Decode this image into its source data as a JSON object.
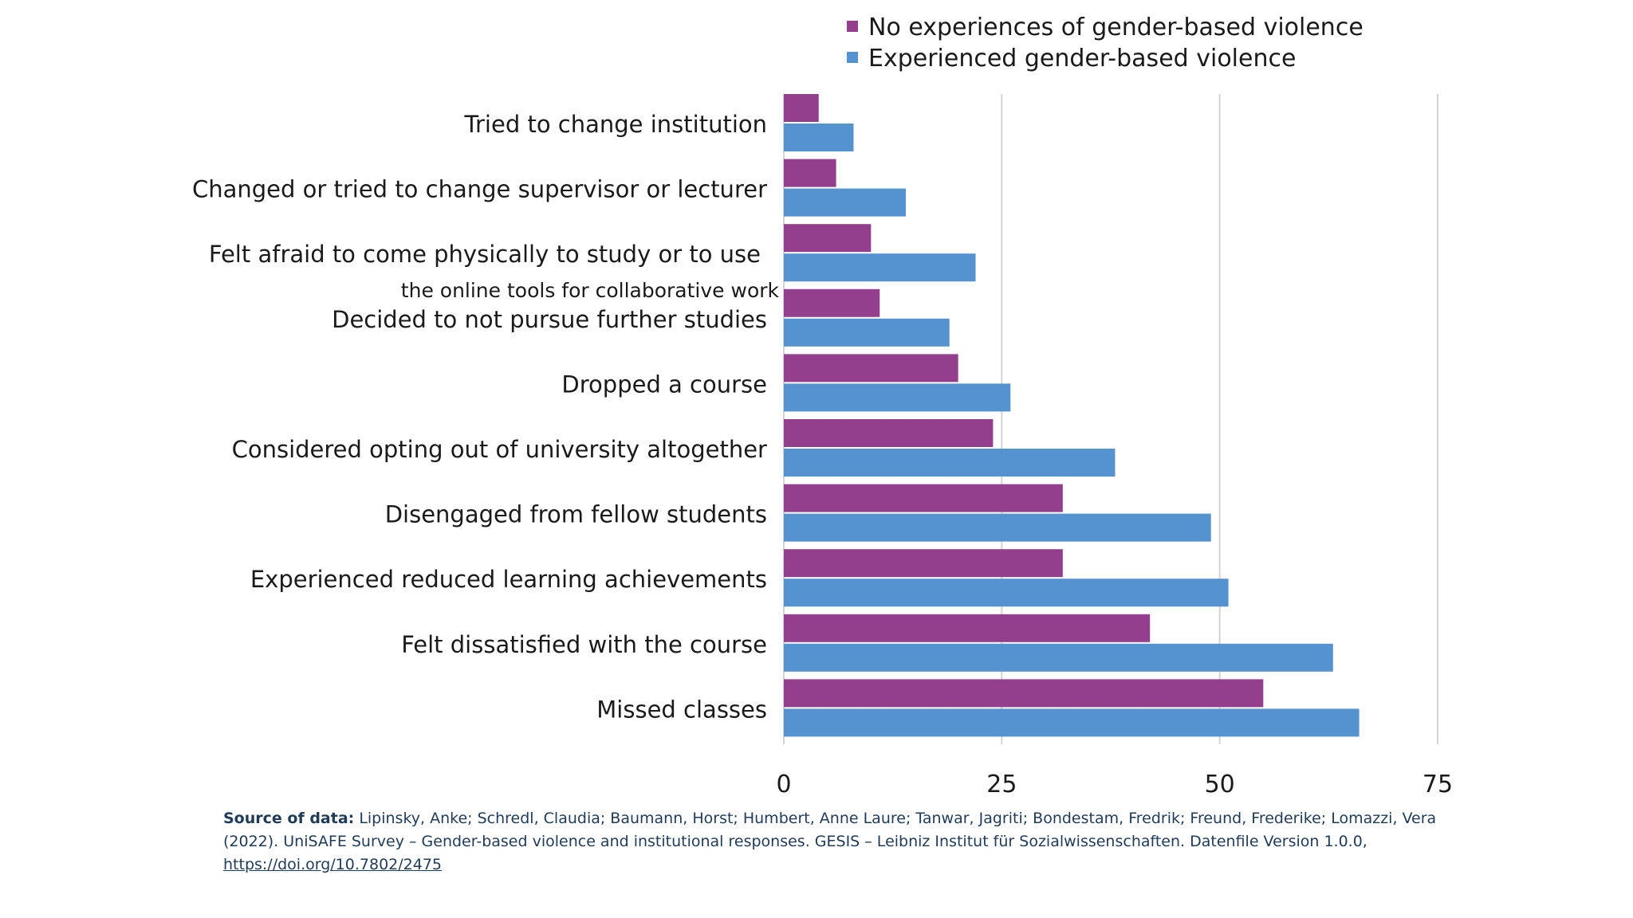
{
  "chart_data": {
    "type": "bar",
    "orientation": "horizontal",
    "categories": [
      "Tried to change institution",
      "Changed or tried to change supervisor or lecturer",
      "Felt afraid to come physically to study or to use the online tools for collaborative work",
      "Decided to not pursue further studies",
      "Dropped a course",
      "Considered opting out of university altogether",
      "Disengaged from fellow students",
      "Experienced reduced learning achievements",
      "Felt dissatisfied with the course",
      "Missed classes"
    ],
    "category_lines": [
      [
        "Tried to change institution"
      ],
      [
        "Changed or tried to change supervisor or lecturer"
      ],
      [
        "Felt afraid to come physically to study or to use",
        "the online tools for collaborative work"
      ],
      [
        "Decided to not pursue further studies"
      ],
      [
        "Dropped a course"
      ],
      [
        "Considered opting out of university altogether"
      ],
      [
        "Disengaged from fellow students"
      ],
      [
        "Experienced reduced learning achievements"
      ],
      [
        "Felt dissatisfied with the course"
      ],
      [
        "Missed classes"
      ]
    ],
    "series": [
      {
        "name": "No experiences of gender-based violence",
        "color": "#943f8e",
        "values": [
          4,
          6,
          10,
          11,
          20,
          24,
          32,
          32,
          42,
          55
        ]
      },
      {
        "name": "Experienced gender-based violence",
        "color": "#5592d0",
        "values": [
          8,
          14,
          22,
          19,
          26,
          38,
          49,
          51,
          63,
          66
        ]
      }
    ],
    "xlim": [
      0,
      75
    ],
    "xticks": [
      "0",
      "25",
      "50",
      "75"
    ],
    "grid": true,
    "legend": "top",
    "title": "",
    "xlabel": "",
    "ylabel": ""
  },
  "source": {
    "label": "Source of data:",
    "text": "Lipinsky, Anke; Schredl, Claudia; Baumann, Horst; Humbert, Anne Laure; Tanwar, Jagriti; Bondestam, Fredrik; Freund, Frederike; Lomazzi, Vera (2022). UniSAFE Survey – Gender-based violence and institutional responses. GESIS – Leibniz Institut für Sozialwissenschaften. Datenfile Version 1.0.0,",
    "link": "https://doi.org/10.7802/2475"
  }
}
